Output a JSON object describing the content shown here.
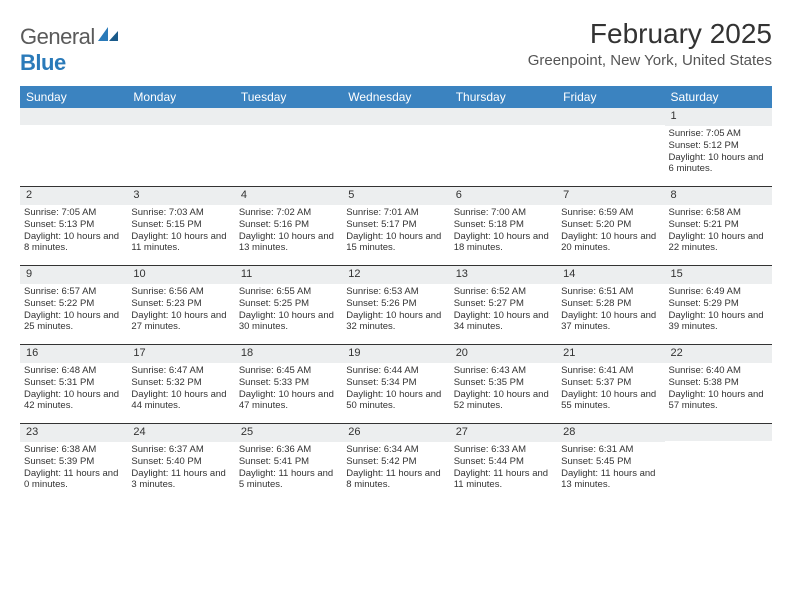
{
  "logo": {
    "word1": "General",
    "word2": "Blue"
  },
  "title": "February 2025",
  "location": "Greenpoint, New York, United States",
  "colors": {
    "header_bg": "#3b83c0",
    "header_text": "#ffffff",
    "daynum_bg": "#eceeef",
    "text": "#333333",
    "rule": "#333333",
    "logo_gray": "#5a5a5a",
    "logo_blue": "#2a7ab9",
    "background": "#ffffff"
  },
  "typography": {
    "title_fontsize": 28,
    "location_fontsize": 15,
    "day_header_fontsize": 12,
    "daynum_fontsize": 11,
    "cell_fontsize": 9.5,
    "logo_fontsize": 22
  },
  "layout": {
    "columns": 7,
    "rows": 5,
    "cell_min_height": 78
  },
  "day_names": [
    "Sunday",
    "Monday",
    "Tuesday",
    "Wednesday",
    "Thursday",
    "Friday",
    "Saturday"
  ],
  "weeks": [
    [
      null,
      null,
      null,
      null,
      null,
      null,
      {
        "n": "1",
        "sr": "Sunrise: 7:05 AM",
        "ss": "Sunset: 5:12 PM",
        "dl": "Daylight: 10 hours and 6 minutes."
      }
    ],
    [
      {
        "n": "2",
        "sr": "Sunrise: 7:05 AM",
        "ss": "Sunset: 5:13 PM",
        "dl": "Daylight: 10 hours and 8 minutes."
      },
      {
        "n": "3",
        "sr": "Sunrise: 7:03 AM",
        "ss": "Sunset: 5:15 PM",
        "dl": "Daylight: 10 hours and 11 minutes."
      },
      {
        "n": "4",
        "sr": "Sunrise: 7:02 AM",
        "ss": "Sunset: 5:16 PM",
        "dl": "Daylight: 10 hours and 13 minutes."
      },
      {
        "n": "5",
        "sr": "Sunrise: 7:01 AM",
        "ss": "Sunset: 5:17 PM",
        "dl": "Daylight: 10 hours and 15 minutes."
      },
      {
        "n": "6",
        "sr": "Sunrise: 7:00 AM",
        "ss": "Sunset: 5:18 PM",
        "dl": "Daylight: 10 hours and 18 minutes."
      },
      {
        "n": "7",
        "sr": "Sunrise: 6:59 AM",
        "ss": "Sunset: 5:20 PM",
        "dl": "Daylight: 10 hours and 20 minutes."
      },
      {
        "n": "8",
        "sr": "Sunrise: 6:58 AM",
        "ss": "Sunset: 5:21 PM",
        "dl": "Daylight: 10 hours and 22 minutes."
      }
    ],
    [
      {
        "n": "9",
        "sr": "Sunrise: 6:57 AM",
        "ss": "Sunset: 5:22 PM",
        "dl": "Daylight: 10 hours and 25 minutes."
      },
      {
        "n": "10",
        "sr": "Sunrise: 6:56 AM",
        "ss": "Sunset: 5:23 PM",
        "dl": "Daylight: 10 hours and 27 minutes."
      },
      {
        "n": "11",
        "sr": "Sunrise: 6:55 AM",
        "ss": "Sunset: 5:25 PM",
        "dl": "Daylight: 10 hours and 30 minutes."
      },
      {
        "n": "12",
        "sr": "Sunrise: 6:53 AM",
        "ss": "Sunset: 5:26 PM",
        "dl": "Daylight: 10 hours and 32 minutes."
      },
      {
        "n": "13",
        "sr": "Sunrise: 6:52 AM",
        "ss": "Sunset: 5:27 PM",
        "dl": "Daylight: 10 hours and 34 minutes."
      },
      {
        "n": "14",
        "sr": "Sunrise: 6:51 AM",
        "ss": "Sunset: 5:28 PM",
        "dl": "Daylight: 10 hours and 37 minutes."
      },
      {
        "n": "15",
        "sr": "Sunrise: 6:49 AM",
        "ss": "Sunset: 5:29 PM",
        "dl": "Daylight: 10 hours and 39 minutes."
      }
    ],
    [
      {
        "n": "16",
        "sr": "Sunrise: 6:48 AM",
        "ss": "Sunset: 5:31 PM",
        "dl": "Daylight: 10 hours and 42 minutes."
      },
      {
        "n": "17",
        "sr": "Sunrise: 6:47 AM",
        "ss": "Sunset: 5:32 PM",
        "dl": "Daylight: 10 hours and 44 minutes."
      },
      {
        "n": "18",
        "sr": "Sunrise: 6:45 AM",
        "ss": "Sunset: 5:33 PM",
        "dl": "Daylight: 10 hours and 47 minutes."
      },
      {
        "n": "19",
        "sr": "Sunrise: 6:44 AM",
        "ss": "Sunset: 5:34 PM",
        "dl": "Daylight: 10 hours and 50 minutes."
      },
      {
        "n": "20",
        "sr": "Sunrise: 6:43 AM",
        "ss": "Sunset: 5:35 PM",
        "dl": "Daylight: 10 hours and 52 minutes."
      },
      {
        "n": "21",
        "sr": "Sunrise: 6:41 AM",
        "ss": "Sunset: 5:37 PM",
        "dl": "Daylight: 10 hours and 55 minutes."
      },
      {
        "n": "22",
        "sr": "Sunrise: 6:40 AM",
        "ss": "Sunset: 5:38 PM",
        "dl": "Daylight: 10 hours and 57 minutes."
      }
    ],
    [
      {
        "n": "23",
        "sr": "Sunrise: 6:38 AM",
        "ss": "Sunset: 5:39 PM",
        "dl": "Daylight: 11 hours and 0 minutes."
      },
      {
        "n": "24",
        "sr": "Sunrise: 6:37 AM",
        "ss": "Sunset: 5:40 PM",
        "dl": "Daylight: 11 hours and 3 minutes."
      },
      {
        "n": "25",
        "sr": "Sunrise: 6:36 AM",
        "ss": "Sunset: 5:41 PM",
        "dl": "Daylight: 11 hours and 5 minutes."
      },
      {
        "n": "26",
        "sr": "Sunrise: 6:34 AM",
        "ss": "Sunset: 5:42 PM",
        "dl": "Daylight: 11 hours and 8 minutes."
      },
      {
        "n": "27",
        "sr": "Sunrise: 6:33 AM",
        "ss": "Sunset: 5:44 PM",
        "dl": "Daylight: 11 hours and 11 minutes."
      },
      {
        "n": "28",
        "sr": "Sunrise: 6:31 AM",
        "ss": "Sunset: 5:45 PM",
        "dl": "Daylight: 11 hours and 13 minutes."
      },
      null
    ]
  ]
}
